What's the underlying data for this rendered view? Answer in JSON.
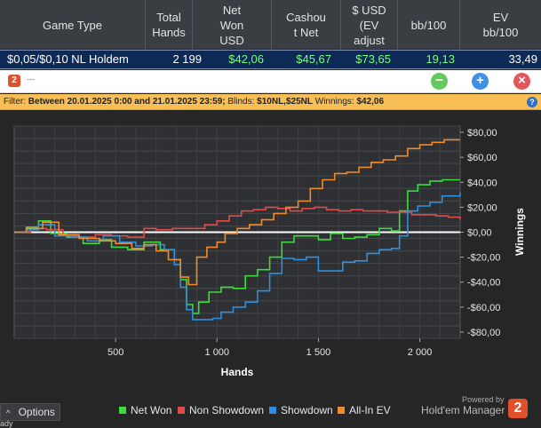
{
  "stats_table": {
    "headers": [
      "Game Type",
      "Total\nHands",
      "Net\nWon\nUSD",
      "Cashou\nt Net",
      "$ USD\n(EV\nadjust",
      "bb/100",
      "EV\nbb/100"
    ],
    "row": {
      "game_type": "$0,05/$0,10 NL Holdem",
      "total_hands": "2 199",
      "net_won": "$42,06",
      "cashout_net": "$45,67",
      "ev_adjusted": "$73,65",
      "bb100": "19,13",
      "ev_bb100": "33,49"
    }
  },
  "toolbar": {
    "logo_label": "2",
    "text": "---",
    "minus_label": "−",
    "plus_label": "+",
    "close_label": "×"
  },
  "filter": {
    "prefix": "Filter: ",
    "date_range": "Between 20.01.2025 0:00 and 21.01.2025 23:59;",
    "blinds_label": " Blinds: ",
    "blinds_value": "$10NL,$25NL",
    "winnings_label": " Winnings: ",
    "winnings_value": "$42,06",
    "help_label": "?"
  },
  "chart_data": {
    "type": "line",
    "xlabel": "Hands",
    "ylabel": "Winnings",
    "xlim": [
      0,
      2199
    ],
    "ylim": [
      -85,
      85
    ],
    "x_ticks": [
      500,
      1000,
      1500,
      2000
    ],
    "x_tick_labels": [
      "500",
      "1 000",
      "1 500",
      "2 000"
    ],
    "y_ticks": [
      80,
      60,
      40,
      20,
      0,
      -20,
      -40,
      -60,
      -80
    ],
    "y_tick_labels": [
      "$80,00",
      "$60,00",
      "$40,00",
      "$20,00",
      "$0,00",
      "-$20,00",
      "-$40,00",
      "-$60,00",
      "-$80,00"
    ],
    "grid": true,
    "legend_position": "bottom",
    "series": [
      {
        "name": "Net Won",
        "color": "#3ddc3d",
        "points": [
          [
            0,
            0
          ],
          [
            60,
            4
          ],
          [
            120,
            9
          ],
          [
            180,
            -1
          ],
          [
            260,
            -4
          ],
          [
            340,
            -9
          ],
          [
            420,
            -6
          ],
          [
            480,
            -12
          ],
          [
            560,
            -14
          ],
          [
            640,
            -8
          ],
          [
            720,
            -14
          ],
          [
            790,
            -22
          ],
          [
            820,
            -38
          ],
          [
            850,
            -58
          ],
          [
            880,
            -65
          ],
          [
            910,
            -56
          ],
          [
            960,
            -48
          ],
          [
            1020,
            -44
          ],
          [
            1080,
            -45
          ],
          [
            1140,
            -35
          ],
          [
            1200,
            -30
          ],
          [
            1260,
            -20
          ],
          [
            1320,
            -8
          ],
          [
            1380,
            -3
          ],
          [
            1440,
            -3
          ],
          [
            1500,
            -6
          ],
          [
            1560,
            -1
          ],
          [
            1620,
            -5
          ],
          [
            1680,
            -4
          ],
          [
            1740,
            -2
          ],
          [
            1800,
            3
          ],
          [
            1860,
            1
          ],
          [
            1900,
            17
          ],
          [
            1940,
            33
          ],
          [
            1990,
            38
          ],
          [
            2050,
            41
          ],
          [
            2110,
            42
          ],
          [
            2199,
            42
          ]
        ]
      },
      {
        "name": "Non Showdown",
        "color": "#e24a4a",
        "points": [
          [
            0,
            0
          ],
          [
            80,
            3
          ],
          [
            160,
            2
          ],
          [
            240,
            -3
          ],
          [
            320,
            -4
          ],
          [
            400,
            -2
          ],
          [
            480,
            -3
          ],
          [
            560,
            -4
          ],
          [
            640,
            3
          ],
          [
            700,
            2
          ],
          [
            780,
            3
          ],
          [
            860,
            3
          ],
          [
            940,
            6
          ],
          [
            1000,
            9
          ],
          [
            1060,
            13
          ],
          [
            1120,
            17
          ],
          [
            1180,
            18
          ],
          [
            1240,
            20
          ],
          [
            1300,
            19
          ],
          [
            1360,
            17
          ],
          [
            1420,
            19
          ],
          [
            1480,
            20
          ],
          [
            1540,
            18
          ],
          [
            1600,
            17
          ],
          [
            1660,
            18
          ],
          [
            1720,
            17
          ],
          [
            1780,
            17
          ],
          [
            1840,
            16
          ],
          [
            1900,
            16
          ],
          [
            1960,
            14
          ],
          [
            2020,
            14
          ],
          [
            2080,
            13
          ],
          [
            2140,
            12
          ],
          [
            2199,
            10
          ]
        ]
      },
      {
        "name": "Showdown",
        "color": "#2f8fe0",
        "points": [
          [
            0,
            0
          ],
          [
            60,
            2
          ],
          [
            120,
            6
          ],
          [
            200,
            -3
          ],
          [
            280,
            -4
          ],
          [
            360,
            -7
          ],
          [
            440,
            -3
          ],
          [
            520,
            -8
          ],
          [
            600,
            -11
          ],
          [
            680,
            -10
          ],
          [
            740,
            -14
          ],
          [
            790,
            -26
          ],
          [
            820,
            -44
          ],
          [
            850,
            -62
          ],
          [
            880,
            -70
          ],
          [
            930,
            -70
          ],
          [
            980,
            -69
          ],
          [
            1020,
            -64
          ],
          [
            1080,
            -60
          ],
          [
            1140,
            -56
          ],
          [
            1200,
            -47
          ],
          [
            1260,
            -33
          ],
          [
            1320,
            -21
          ],
          [
            1380,
            -22
          ],
          [
            1440,
            -20
          ],
          [
            1500,
            -31
          ],
          [
            1560,
            -31
          ],
          [
            1620,
            -24
          ],
          [
            1680,
            -23
          ],
          [
            1740,
            -17
          ],
          [
            1800,
            -14
          ],
          [
            1860,
            -13
          ],
          [
            1900,
            -3
          ],
          [
            1940,
            17
          ],
          [
            1990,
            21
          ],
          [
            2050,
            24
          ],
          [
            2110,
            29
          ],
          [
            2199,
            32
          ]
        ]
      },
      {
        "name": "All-In EV",
        "color": "#f08a2a",
        "points": [
          [
            0,
            0
          ],
          [
            60,
            3
          ],
          [
            140,
            8
          ],
          [
            220,
            -2
          ],
          [
            320,
            -5
          ],
          [
            420,
            -7
          ],
          [
            500,
            -9
          ],
          [
            580,
            -13
          ],
          [
            640,
            -10
          ],
          [
            700,
            -15
          ],
          [
            760,
            -22
          ],
          [
            820,
            -36
          ],
          [
            860,
            -42
          ],
          [
            900,
            -20
          ],
          [
            950,
            -12
          ],
          [
            1000,
            -8
          ],
          [
            1040,
            -1
          ],
          [
            1100,
            3
          ],
          [
            1160,
            6
          ],
          [
            1220,
            10
          ],
          [
            1280,
            15
          ],
          [
            1340,
            20
          ],
          [
            1400,
            25
          ],
          [
            1460,
            35
          ],
          [
            1520,
            42
          ],
          [
            1580,
            47
          ],
          [
            1640,
            48
          ],
          [
            1700,
            52
          ],
          [
            1760,
            56
          ],
          [
            1820,
            58
          ],
          [
            1880,
            61
          ],
          [
            1940,
            67
          ],
          [
            2000,
            70
          ],
          [
            2060,
            72
          ],
          [
            2120,
            74
          ],
          [
            2199,
            74
          ]
        ]
      }
    ]
  },
  "footer": {
    "options_label": "Options",
    "powered_by": "Powered by",
    "brand_name": "Hold'em Manager",
    "brand_logo": "2",
    "edge_text": "ady"
  }
}
